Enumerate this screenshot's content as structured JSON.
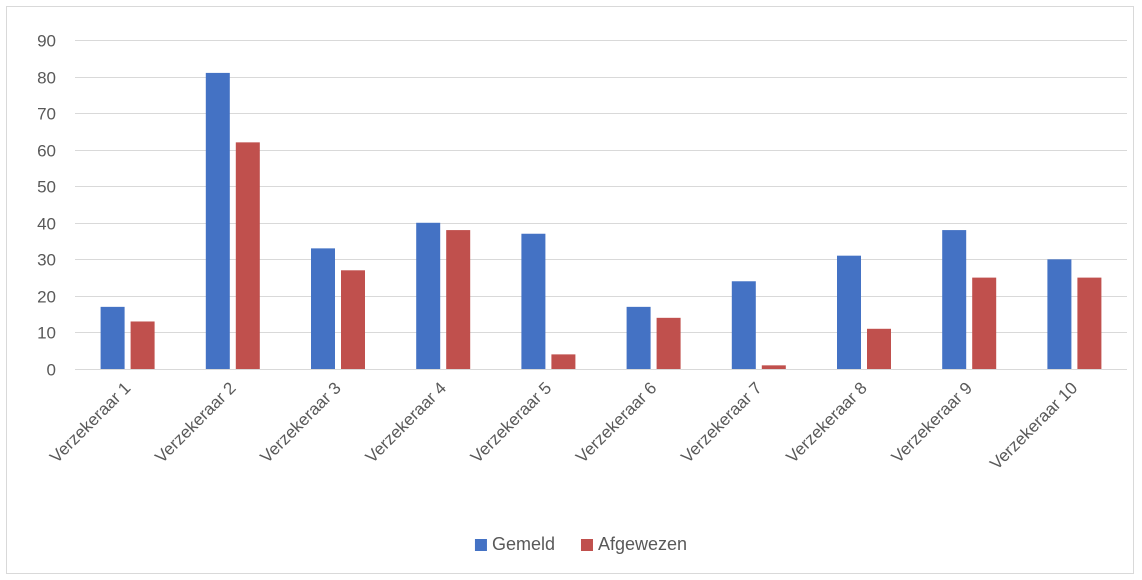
{
  "chart_data": {
    "type": "bar",
    "categories": [
      "Verzekeraar 1",
      "Verzekeraar 2",
      "Verzekeraar 3",
      "Verzekeraar 4",
      "Verzekeraar 5",
      "Verzekeraar 6",
      "Verzekeraar 7",
      "Verzekeraar 8",
      "Verzekeraar 9",
      "Verzekeraar 10"
    ],
    "series": [
      {
        "name": "Gemeld",
        "color": "#4472C4",
        "values": [
          17,
          81,
          33,
          40,
          37,
          17,
          24,
          31,
          38,
          30
        ]
      },
      {
        "name": "Afgewezen",
        "color": "#C0504D",
        "values": [
          13,
          62,
          27,
          38,
          4,
          14,
          1,
          11,
          25,
          25
        ]
      }
    ],
    "ylim": [
      0,
      90
    ],
    "yticks": [
      0,
      10,
      20,
      30,
      40,
      50,
      60,
      70,
      80,
      90
    ],
    "grid": true,
    "legend_position": "bottom",
    "gridline_color": "#d9d9d9",
    "text_color": "#595959"
  }
}
